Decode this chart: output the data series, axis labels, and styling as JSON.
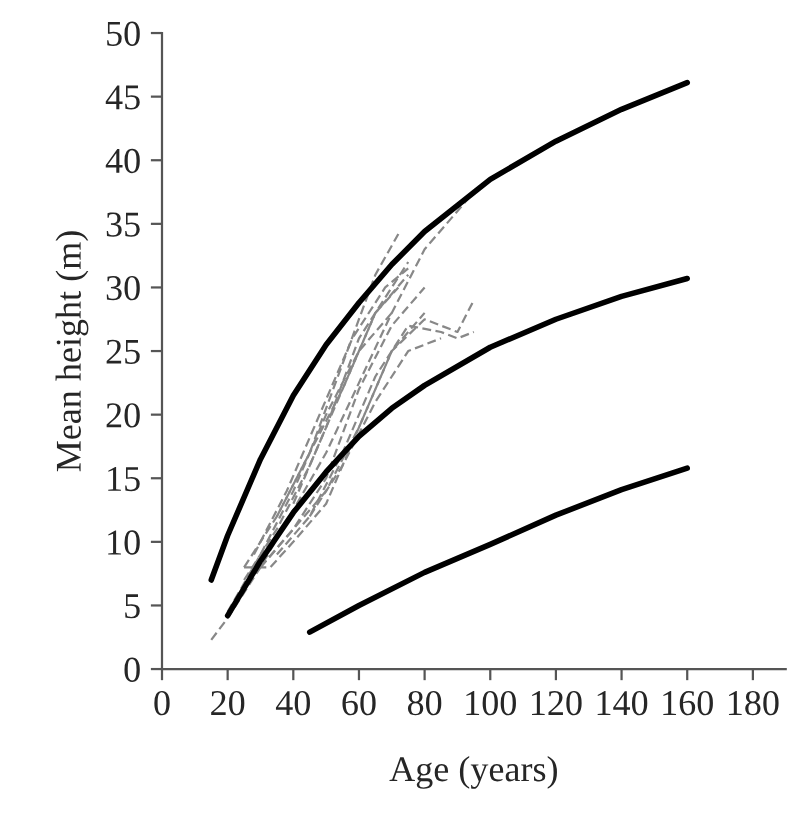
{
  "chart_data": {
    "type": "line",
    "xlabel": "Age (years)",
    "ylabel": "Mean height (m)",
    "xlim": [
      0,
      190
    ],
    "xticks": [
      0,
      20,
      40,
      60,
      80,
      100,
      120,
      140,
      160,
      180
    ],
    "ylim": [
      0,
      50
    ],
    "yticks": [
      0,
      5,
      10,
      15,
      20,
      25,
      30,
      35,
      40,
      45,
      50
    ],
    "grid": false,
    "legend": false,
    "marker": "none",
    "series": [
      {
        "color": "#000000",
        "line_style": "solid",
        "x": [
          15,
          20,
          30,
          40,
          50,
          60,
          70,
          80,
          100,
          120,
          140,
          160
        ],
        "values": [
          7,
          10.5,
          16.5,
          21.5,
          25.5,
          28.8,
          31.8,
          34.4,
          38.5,
          41.5,
          44,
          46.1
        ]
      },
      {
        "color": "#000000",
        "line_style": "solid",
        "x": [
          20,
          30,
          40,
          50,
          60,
          70,
          80,
          100,
          120,
          140,
          160
        ],
        "values": [
          4.2,
          8.5,
          12.3,
          15.5,
          18.3,
          20.5,
          22.3,
          25.3,
          27.5,
          29.3,
          30.7
        ]
      },
      {
        "color": "#000000",
        "line_style": "solid",
        "x": [
          45,
          60,
          80,
          100,
          120,
          140,
          160
        ],
        "values": [
          2.9,
          5,
          7.6,
          9.8,
          12.1,
          14.1,
          15.8
        ]
      },
      {
        "color": "#888888",
        "line_style": "dashed",
        "x": [
          15,
          20,
          30,
          40,
          50,
          60,
          70,
          80,
          95
        ],
        "values": [
          2.3,
          4,
          8,
          12.5,
          17,
          22.5,
          28,
          33,
          37.5
        ]
      },
      {
        "color": "#888888",
        "line_style": "dashed",
        "x": [
          25,
          35,
          45,
          55,
          65,
          72
        ],
        "values": [
          8,
          12,
          17,
          24,
          31,
          34.2
        ]
      },
      {
        "color": "#888888",
        "line_style": "dashed",
        "x": [
          25,
          35,
          45,
          55,
          65,
          75
        ],
        "values": [
          7,
          11,
          16,
          22,
          28,
          31
        ]
      },
      {
        "color": "#888888",
        "line_style": "dashed",
        "x": [
          30,
          40,
          50,
          60,
          70,
          80
        ],
        "values": [
          8,
          11,
          15,
          22,
          27,
          30
        ]
      },
      {
        "color": "#888888",
        "line_style": "dashed",
        "x": [
          35,
          45,
          55,
          65,
          75,
          85,
          90,
          95
        ],
        "values": [
          9,
          12,
          17,
          23,
          27,
          26.5,
          26,
          26.5
        ]
      },
      {
        "color": "#888888",
        "line_style": "dashed",
        "x": [
          30,
          40,
          50,
          60,
          70,
          80,
          90,
          95
        ],
        "values": [
          8,
          11,
          14,
          19,
          25,
          27.5,
          26.5,
          29
        ]
      },
      {
        "color": "#888888",
        "line_style": "dashed",
        "x": [
          25,
          33,
          40,
          50,
          60,
          70,
          80
        ],
        "values": [
          8,
          8,
          10,
          13,
          19,
          25,
          28
        ]
      },
      {
        "color": "#888888",
        "line_style": "dashed",
        "x": [
          40,
          50,
          60,
          70,
          75
        ],
        "values": [
          13,
          19,
          26,
          30,
          32
        ]
      },
      {
        "color": "#888888",
        "line_style": "dashed",
        "x": [
          20,
          30,
          40,
          50,
          60,
          70
        ],
        "values": [
          4.5,
          9,
          14,
          20,
          25,
          28
        ]
      },
      {
        "color": "#888888",
        "line_style": "dashed",
        "x": [
          45,
          55,
          65,
          75,
          85
        ],
        "values": [
          12,
          16,
          21,
          25,
          26
        ]
      },
      {
        "color": "#888888",
        "line_style": "dashed",
        "x": [
          28,
          38,
          48,
          58,
          68,
          75
        ],
        "values": [
          9,
          14,
          20,
          26,
          30,
          31.5
        ]
      },
      {
        "color": "#888888",
        "line_style": "dashed",
        "x": [
          35,
          45,
          55,
          65,
          72
        ],
        "values": [
          12,
          17,
          22,
          28,
          30
        ]
      }
    ]
  }
}
